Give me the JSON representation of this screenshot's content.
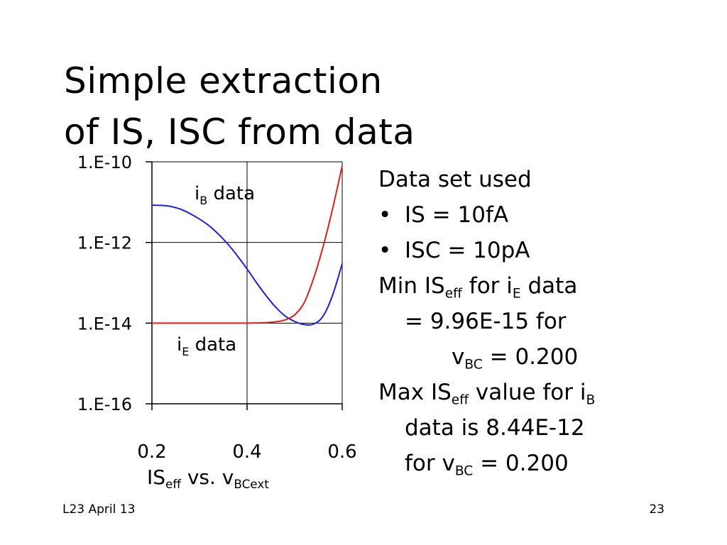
{
  "slide": {
    "title_line1": "Simple extraction",
    "title_line2": "of IS, ISC from data",
    "footer_left": "L23 April 13",
    "page_number": "23"
  },
  "notes": {
    "line1": "Data set used",
    "bullet1": "IS = 10fA",
    "bullet2": "ISC = 10pA",
    "min_prefix": "Min IS",
    "min_sub": "eff",
    "min_mid": " for i",
    "min_sub2": "E",
    "min_suffix": " data",
    "min_value": "= 9.96E-15 for",
    "min_v": "v",
    "min_v_sub": "BC",
    "min_v_val": " = 0.200",
    "max_prefix": "Max IS",
    "max_sub": "eff",
    "max_mid": " value for i",
    "max_sub2": "B",
    "max_value": "data is 8.44E-12",
    "max_for": "for v",
    "max_v_sub": "BC",
    "max_v_val": " = 0.200",
    "bullet_glyph": "•"
  },
  "chart_data": {
    "type": "line",
    "title": "",
    "xlabel_main": "IS",
    "xlabel_sub1": "eff",
    "xlabel_mid": " vs. v",
    "xlabel_sub2": "BCext",
    "ylabel": "",
    "y_scale": "log",
    "xlim": [
      0.2,
      0.6
    ],
    "ylim": [
      1e-16,
      1e-10
    ],
    "x_ticks": [
      0.2,
      0.4,
      0.6
    ],
    "x_tick_labels": [
      "0.2",
      "0.4",
      "0.6"
    ],
    "y_ticks": [
      1e-10,
      1e-12,
      1e-14,
      1e-16
    ],
    "y_tick_labels": [
      "1.E-10",
      "1.E-12",
      "1.E-14",
      "1.E-16"
    ],
    "grid": true,
    "series": [
      {
        "name": "iB data",
        "label_main": "i",
        "label_sub": "B",
        "label_rest": " data",
        "color": "#1f1fe0",
        "x": [
          0.2,
          0.22,
          0.24,
          0.26,
          0.28,
          0.3,
          0.32,
          0.34,
          0.36,
          0.38,
          0.4,
          0.42,
          0.44,
          0.46,
          0.48,
          0.5,
          0.52,
          0.54,
          0.56,
          0.58,
          0.6
        ],
        "y": [
          8.44e-12,
          8.3e-12,
          7.8e-12,
          6.7e-12,
          5.2e-12,
          3.8e-12,
          2.6e-12,
          1.6e-12,
          9e-13,
          4.6e-13,
          2.2e-13,
          1e-13,
          4.8e-14,
          2.5e-14,
          1.5e-14,
          1.1e-14,
          9.2e-15,
          9.5e-15,
          1.5e-14,
          5e-14,
          3e-13
        ]
      },
      {
        "name": "iE data",
        "label_main": "i",
        "label_sub": "E",
        "label_rest": " data",
        "color": "#e01f1f",
        "x": [
          0.2,
          0.25,
          0.3,
          0.35,
          0.4,
          0.42,
          0.44,
          0.46,
          0.48,
          0.5,
          0.52,
          0.54,
          0.56,
          0.58,
          0.6
        ],
        "y": [
          9.96e-15,
          9.96e-15,
          9.96e-15,
          9.97e-15,
          1e-14,
          1.01e-14,
          1.03e-14,
          1.08e-14,
          1.2e-14,
          1.6e-14,
          3.2e-14,
          1.3e-13,
          8e-13,
          7e-12,
          8e-11
        ]
      }
    ]
  }
}
